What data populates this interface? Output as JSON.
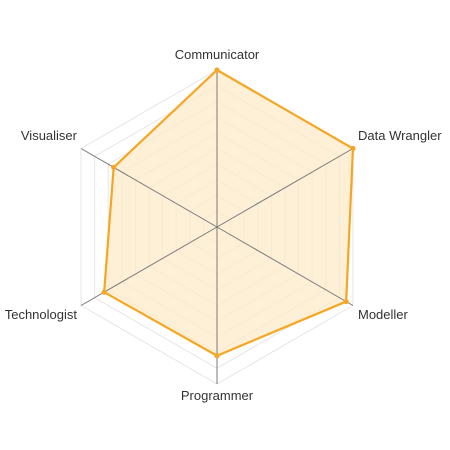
{
  "chart_data": {
    "type": "radar",
    "title": "",
    "axes": [
      "Communicator",
      "Data Wrangler",
      "Modeller",
      "Programmer",
      "Technologist",
      "Visualiser"
    ],
    "series": [
      {
        "values": [
          10,
          10,
          9.5,
          8.2,
          8.3,
          7.6
        ]
      }
    ],
    "r_range": [
      0,
      10
    ],
    "grid_levels": 10,
    "grid": true,
    "legend": "none",
    "colors": {
      "line": "#f5a623",
      "fill": "#fdebc8",
      "point": "#f5a623",
      "grid": "#e6e6e6",
      "spoke": "#7a7a7a"
    }
  }
}
